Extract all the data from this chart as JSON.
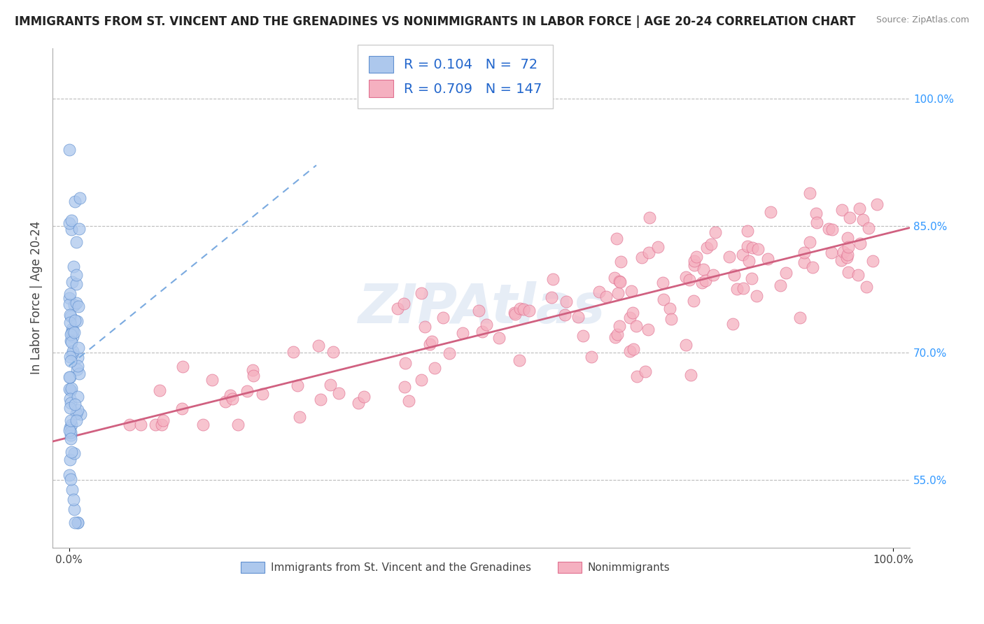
{
  "title": "IMMIGRANTS FROM ST. VINCENT AND THE GRENADINES VS NONIMMIGRANTS IN LABOR FORCE | AGE 20-24 CORRELATION CHART",
  "source": "Source: ZipAtlas.com",
  "ylabel": "In Labor Force | Age 20-24",
  "blue_R": 0.104,
  "blue_N": 72,
  "pink_R": 0.709,
  "pink_N": 147,
  "blue_label": "Immigrants from St. Vincent and the Grenadines",
  "pink_label": "Nonimmigrants",
  "blue_color": "#adc8ed",
  "blue_edge": "#6090d0",
  "pink_color": "#f5b0c0",
  "pink_edge": "#e07090",
  "blue_line_color": "#7aaae0",
  "pink_line_color": "#d06080",
  "background_color": "#ffffff",
  "watermark": "ZIPAtlas",
  "right_yticks": [
    "100.0%",
    "85.0%",
    "70.0%",
    "55.0%"
  ],
  "right_ytick_vals": [
    1.0,
    0.85,
    0.7,
    0.55
  ],
  "xlim": [
    -0.02,
    1.02
  ],
  "ylim": [
    0.47,
    1.06
  ]
}
